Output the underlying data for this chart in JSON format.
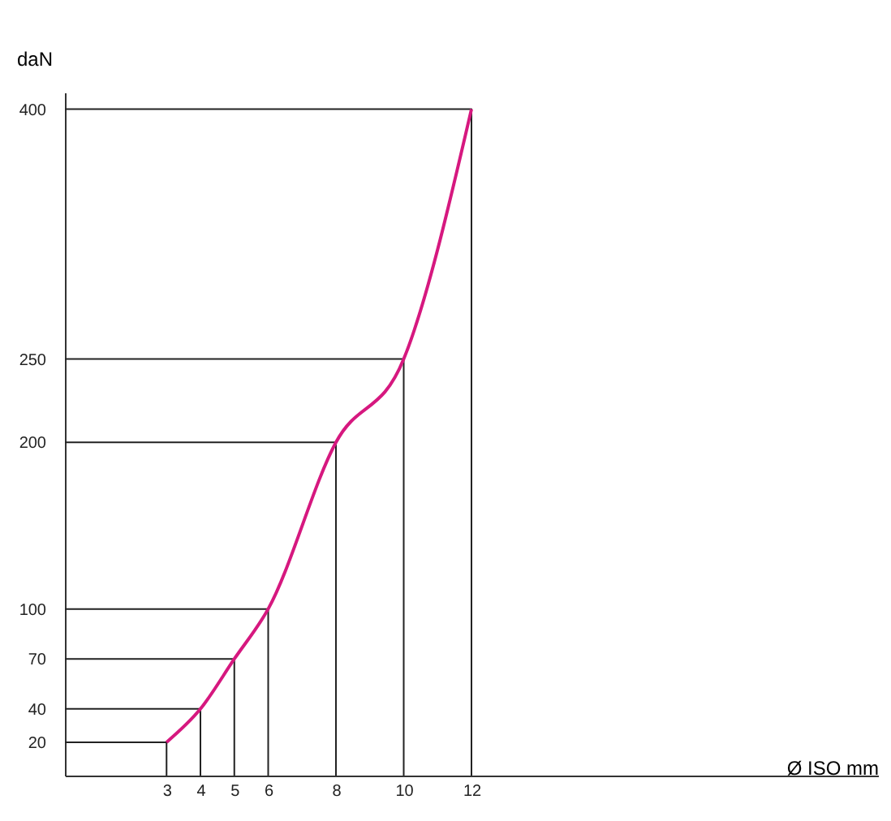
{
  "chart_data": {
    "type": "line",
    "xlabel": "Ø ISO mm",
    "ylabel": "daN",
    "x": [
      3,
      4,
      5,
      6,
      8,
      10,
      12
    ],
    "series": [
      {
        "color": "#d6187f",
        "values": [
          20,
          40,
          70,
          100,
          200,
          250,
          400
        ]
      },
      {
        "color": "#222222",
        "x": [
          0,
          3,
          3
        ],
        "values": [
          20,
          20,
          0
        ]
      },
      {
        "color": "#222222",
        "x": [
          0,
          4,
          4
        ],
        "values": [
          40,
          40,
          0
        ]
      },
      {
        "color": "#222222",
        "x": [
          0,
          5,
          5
        ],
        "values": [
          70,
          70,
          0
        ]
      },
      {
        "color": "#222222",
        "x": [
          0,
          6,
          6
        ],
        "values": [
          100,
          100,
          0
        ]
      },
      {
        "color": "#222222",
        "x": [
          0,
          8,
          8
        ],
        "values": [
          200,
          200,
          0
        ]
      },
      {
        "color": "#222222",
        "x": [
          0,
          10,
          10
        ],
        "values": [
          250,
          250,
          0
        ]
      },
      {
        "color": "#222222",
        "x": [
          0,
          12,
          12
        ],
        "values": [
          400,
          400,
          0
        ]
      }
    ],
    "xlim": [
      0,
      24
    ],
    "xticks": [
      3,
      4,
      5,
      6,
      8,
      10,
      12
    ],
    "ylim": [
      0,
      410
    ],
    "yticks": [
      20,
      40,
      70,
      100,
      200,
      250,
      400
    ],
    "marker": "none",
    "line_style": "solid"
  }
}
